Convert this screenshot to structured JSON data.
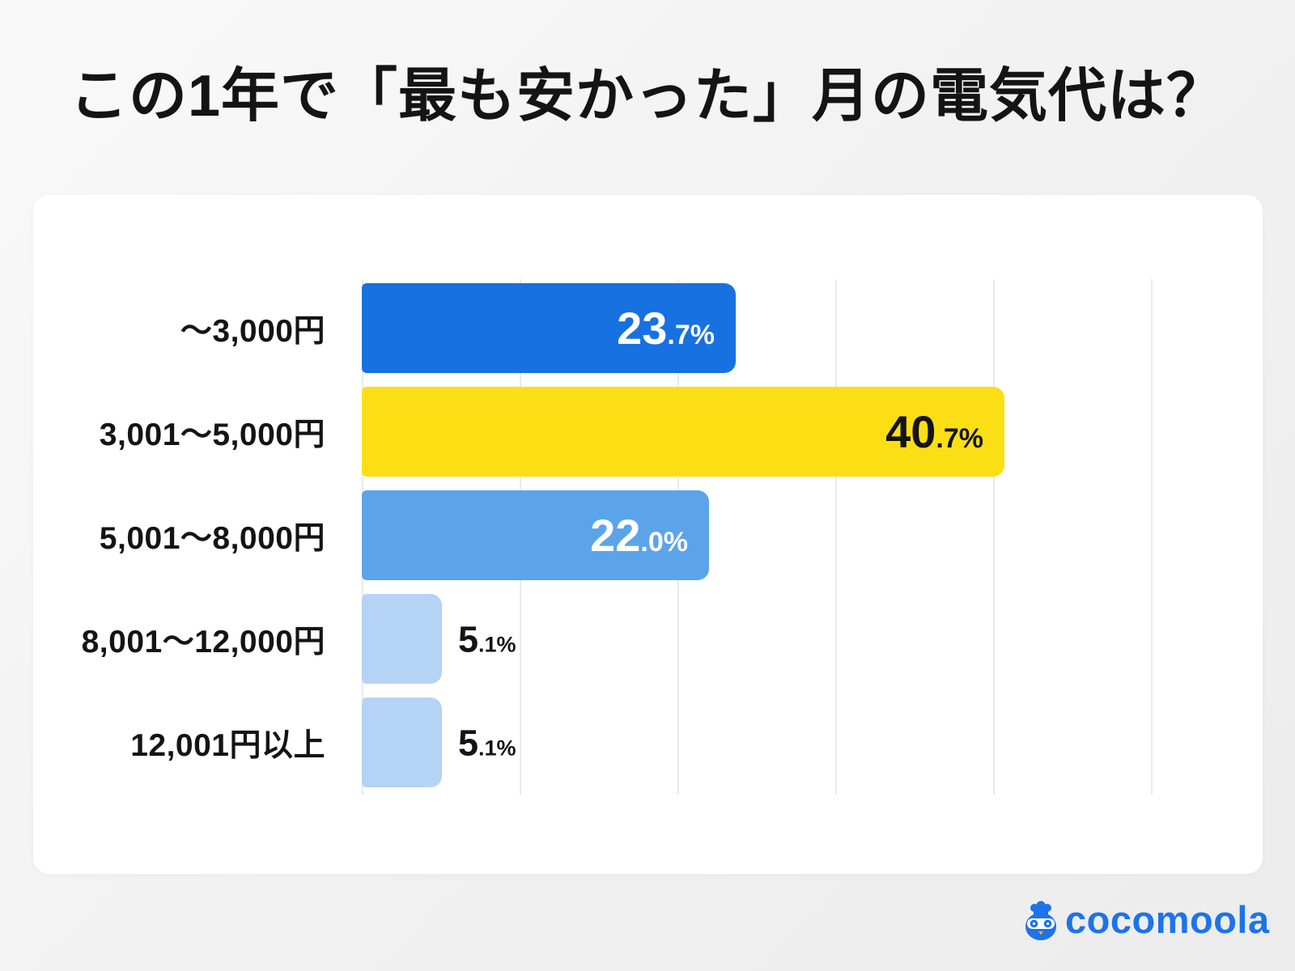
{
  "title": "この1年で「最も安かった」月の電気代は？",
  "chart_data": {
    "type": "bar",
    "orientation": "horizontal",
    "title": "この1年で「最も安かった」月の電気代は？",
    "categories": [
      "〜3,000円",
      "3,001〜5,000円",
      "5,001〜8,000円",
      "8,001〜12,000円",
      "12,001円以上"
    ],
    "values": [
      23.7,
      40.7,
      22.0,
      5.1,
      5.1
    ],
    "value_labels": [
      "23.7%",
      "40.7%",
      "22.0%",
      "5.1%",
      "5.1%"
    ],
    "unit": "%",
    "xlim": [
      0,
      52
    ],
    "gridlines_percent": [
      0,
      10,
      20,
      30,
      40,
      50
    ],
    "grid": true,
    "legend": false,
    "bar_colors": [
      "#1771e1",
      "#fcde15",
      "#5ba4ea",
      "#b4d3f5",
      "#b4d3f5"
    ],
    "value_label_colors": [
      "#ffffff",
      "#141414",
      "#ffffff",
      "#141414",
      "#141414"
    ],
    "value_label_placement": [
      "inside",
      "inside",
      "inside",
      "outside",
      "outside"
    ]
  },
  "style": {
    "card_background": "#ffffff",
    "gridline_color": "#eaeaea",
    "text_color": "#141414"
  },
  "logo": {
    "brand": "cocomoola",
    "text": "cocomoola",
    "color": "#1e73e8",
    "mascot": "money-bag-owl-mascot",
    "beak_color": "#f6b21b"
  }
}
